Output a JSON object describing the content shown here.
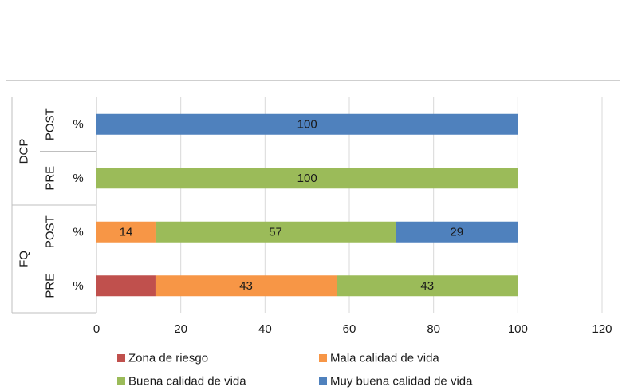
{
  "chart_data": {
    "type": "bar",
    "orientation": "horizontal",
    "stacked": true,
    "title": "",
    "xlim": [
      0,
      120
    ],
    "x_ticks": [
      0,
      20,
      40,
      60,
      80,
      100,
      120
    ],
    "grid": true,
    "legend_position": "bottom",
    "unit_label": "%",
    "groups": [
      {
        "name": "DCP",
        "rows": [
          "POST",
          "PRE"
        ]
      },
      {
        "name": "FQ",
        "rows": [
          "POST",
          "PRE"
        ]
      }
    ],
    "categories": [
      "DCP POST %",
      "DCP PRE %",
      "FQ POST %",
      "FQ PRE %"
    ],
    "series": [
      {
        "name": "Zona de riesgo",
        "color": "#c0504d",
        "values": [
          0,
          0,
          0,
          14
        ],
        "labels": [
          null,
          null,
          null,
          null
        ]
      },
      {
        "name": "Mala calidad de vida",
        "color": "#f79646",
        "values": [
          0,
          0,
          14,
          43
        ],
        "labels": [
          null,
          null,
          "14",
          "43"
        ]
      },
      {
        "name": "Buena calidad de vida",
        "color": "#9bbb59",
        "values": [
          0,
          100,
          57,
          43
        ],
        "labels": [
          null,
          "100",
          "57",
          "43"
        ]
      },
      {
        "name": "Muy buena calidad de vida",
        "color": "#4f81bd",
        "values": [
          100,
          0,
          29,
          0
        ],
        "labels": [
          "100",
          null,
          "29",
          null
        ]
      }
    ]
  }
}
